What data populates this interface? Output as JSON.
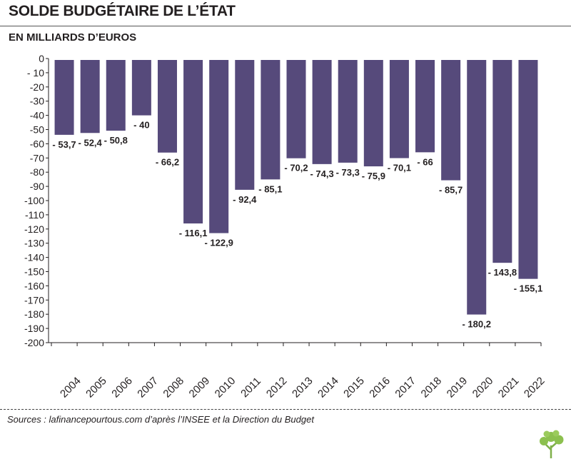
{
  "header": {
    "title": "SOLDE BUDGÉTAIRE DE L’ÉTAT",
    "subtitle": "EN MILLIARDS D’EUROS"
  },
  "footer": {
    "source": "Sources : lafinancepourtous.com d’après l’INSEE et la Direction du Budget"
  },
  "colors": {
    "bar": "#564a7b",
    "axis": "#231f20"
  },
  "logo": {
    "icon": "tree-leaf-icon"
  },
  "chart_data": {
    "type": "bar",
    "title": "SOLDE BUDGÉTAIRE DE L’ÉTAT",
    "ylabel": "EN MILLIARDS D’EUROS",
    "xlabel": "",
    "ylim": [
      -200,
      0
    ],
    "yticks": [
      "0",
      "- 10",
      "-20",
      "-30",
      "-40",
      "-50",
      "-60",
      "-70",
      "-80",
      "-90",
      "-100",
      "-110",
      "-120",
      "-130",
      "-140",
      "-150",
      "-160",
      "-170",
      "-180",
      "-190",
      "-200"
    ],
    "categories": [
      "2004",
      "2005",
      "2006",
      "2007",
      "2008",
      "2009",
      "2010",
      "2011",
      "2012",
      "2013",
      "2014",
      "2015",
      "2016",
      "2017",
      "2018",
      "2019",
      "2020",
      "2021",
      "2022"
    ],
    "values": [
      -53.7,
      -52.4,
      -50.8,
      -40,
      -66.2,
      -116.1,
      -122.9,
      -92.4,
      -85.1,
      -70.2,
      -74.3,
      -73.3,
      -75.9,
      -70.1,
      -66,
      -85.7,
      -180.2,
      -143.8,
      -155.1
    ],
    "labels": [
      "- 53,7",
      "- 52,4",
      "- 50,8",
      "- 40",
      "- 66,2",
      "- 116,1",
      "- 122,9",
      "- 92,4",
      "- 85,1",
      "- 70,2",
      "- 74,3",
      "- 73,3",
      "- 75,9",
      "- 70,1",
      "- 66",
      "- 85,7",
      "- 180,2",
      "- 143,8",
      "- 155,1"
    ],
    "grid": false,
    "legend": "none"
  }
}
